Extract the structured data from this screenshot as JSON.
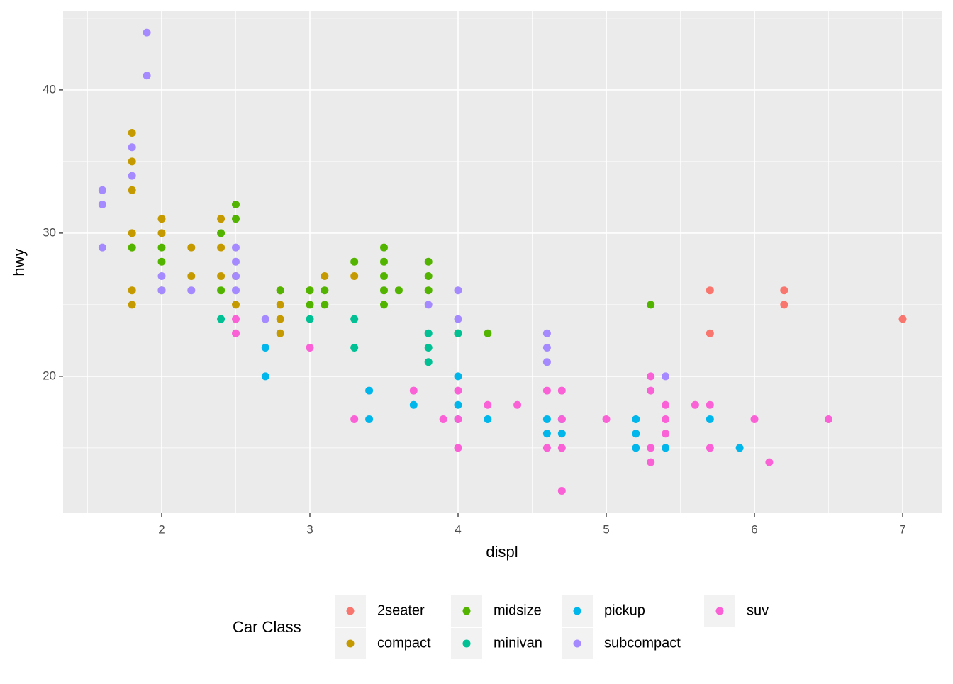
{
  "chart_data": {
    "type": "scatter",
    "x_label": "displ",
    "y_label": "hwy",
    "legend_title": "Car Class",
    "legend_position": "bottom",
    "xlim": [
      1.335,
      7.263
    ],
    "ylim": [
      10.44,
      45.54
    ],
    "xticks": [
      2,
      3,
      4,
      5,
      6,
      7
    ],
    "yticks": [
      20,
      30,
      40
    ],
    "grid": true,
    "series": [
      {
        "name": "2seater",
        "color": "#F8766D",
        "x": [
          5.7,
          5.7,
          6.2,
          6.2,
          7
        ],
        "values": [
          26,
          23,
          26,
          25,
          24
        ]
      },
      {
        "name": "compact",
        "color": "#C49A00",
        "x": [
          1.8,
          1.8,
          1.8,
          1.8,
          1.8,
          1.8,
          1.8,
          2,
          2,
          2.2,
          2.2,
          2.4,
          2.4,
          2.4,
          2.5,
          2.5,
          2.8,
          2.8,
          2.8,
          2.8,
          3,
          3.1,
          3.3
        ],
        "values": [
          37,
          35,
          33,
          30,
          29,
          26,
          25,
          31,
          30,
          29,
          27,
          31,
          29,
          27,
          27,
          25,
          26,
          25,
          24,
          23,
          26,
          27,
          27
        ]
      },
      {
        "name": "midsize",
        "color": "#53B400",
        "x": [
          1.8,
          2,
          2,
          2,
          2.4,
          2.4,
          2.5,
          2.5,
          2.8,
          3,
          3,
          3.1,
          3.1,
          3.3,
          3.5,
          3.5,
          3.5,
          3.5,
          3.5,
          3.6,
          3.8,
          3.8,
          3.8,
          4,
          4.2,
          5.3
        ],
        "values": [
          29,
          29,
          28,
          26,
          30,
          26,
          32,
          31,
          26,
          26,
          25,
          26,
          25,
          28,
          29,
          28,
          27,
          26,
          25,
          26,
          28,
          27,
          26,
          23,
          23,
          25
        ]
      },
      {
        "name": "minivan",
        "color": "#00C094",
        "x": [
          2.4,
          3,
          3.3,
          3.3,
          3.8,
          3.8,
          3.8,
          4
        ],
        "values": [
          24,
          24,
          24,
          22,
          23,
          22,
          21,
          23
        ]
      },
      {
        "name": "pickup",
        "color": "#00B6EB",
        "x": [
          2.7,
          2.7,
          3.4,
          3.4,
          3.7,
          4,
          4,
          4,
          4.2,
          4.6,
          4.6,
          4.7,
          4.7,
          5.2,
          5.2,
          5.2,
          5.4,
          5.7,
          5.9
        ],
        "values": [
          22,
          20,
          19,
          17,
          18,
          20,
          18,
          17,
          17,
          17,
          16,
          17,
          16,
          17,
          16,
          15,
          15,
          17,
          15
        ]
      },
      {
        "name": "subcompact",
        "color": "#A58AFF",
        "x": [
          1.6,
          1.6,
          1.6,
          1.8,
          1.8,
          1.9,
          1.9,
          2,
          2,
          2.2,
          2.5,
          2.5,
          2.5,
          2.5,
          2.7,
          3.8,
          4,
          4,
          4.6,
          4.6,
          4.6,
          5.4
        ],
        "values": [
          33,
          32,
          29,
          36,
          34,
          44,
          41,
          27,
          26,
          26,
          29,
          28,
          27,
          26,
          24,
          25,
          26,
          24,
          23,
          22,
          21,
          20
        ]
      },
      {
        "name": "suv",
        "color": "#FB61D7",
        "x": [
          2.5,
          2.5,
          3,
          3.3,
          3.7,
          3.9,
          4,
          4,
          4,
          4.2,
          4.4,
          4.6,
          4.6,
          4.7,
          4.7,
          4.7,
          4.7,
          5,
          5.3,
          5.3,
          5.3,
          5.3,
          5.4,
          5.4,
          5.4,
          5.6,
          5.7,
          5.7,
          6,
          6.1,
          6.5
        ],
        "values": [
          24,
          23,
          22,
          17,
          19,
          17,
          19,
          17,
          15,
          18,
          18,
          19,
          15,
          19,
          17,
          15,
          12,
          17,
          20,
          19,
          15,
          14,
          18,
          17,
          16,
          18,
          18,
          15,
          17,
          14,
          17
        ]
      }
    ]
  }
}
